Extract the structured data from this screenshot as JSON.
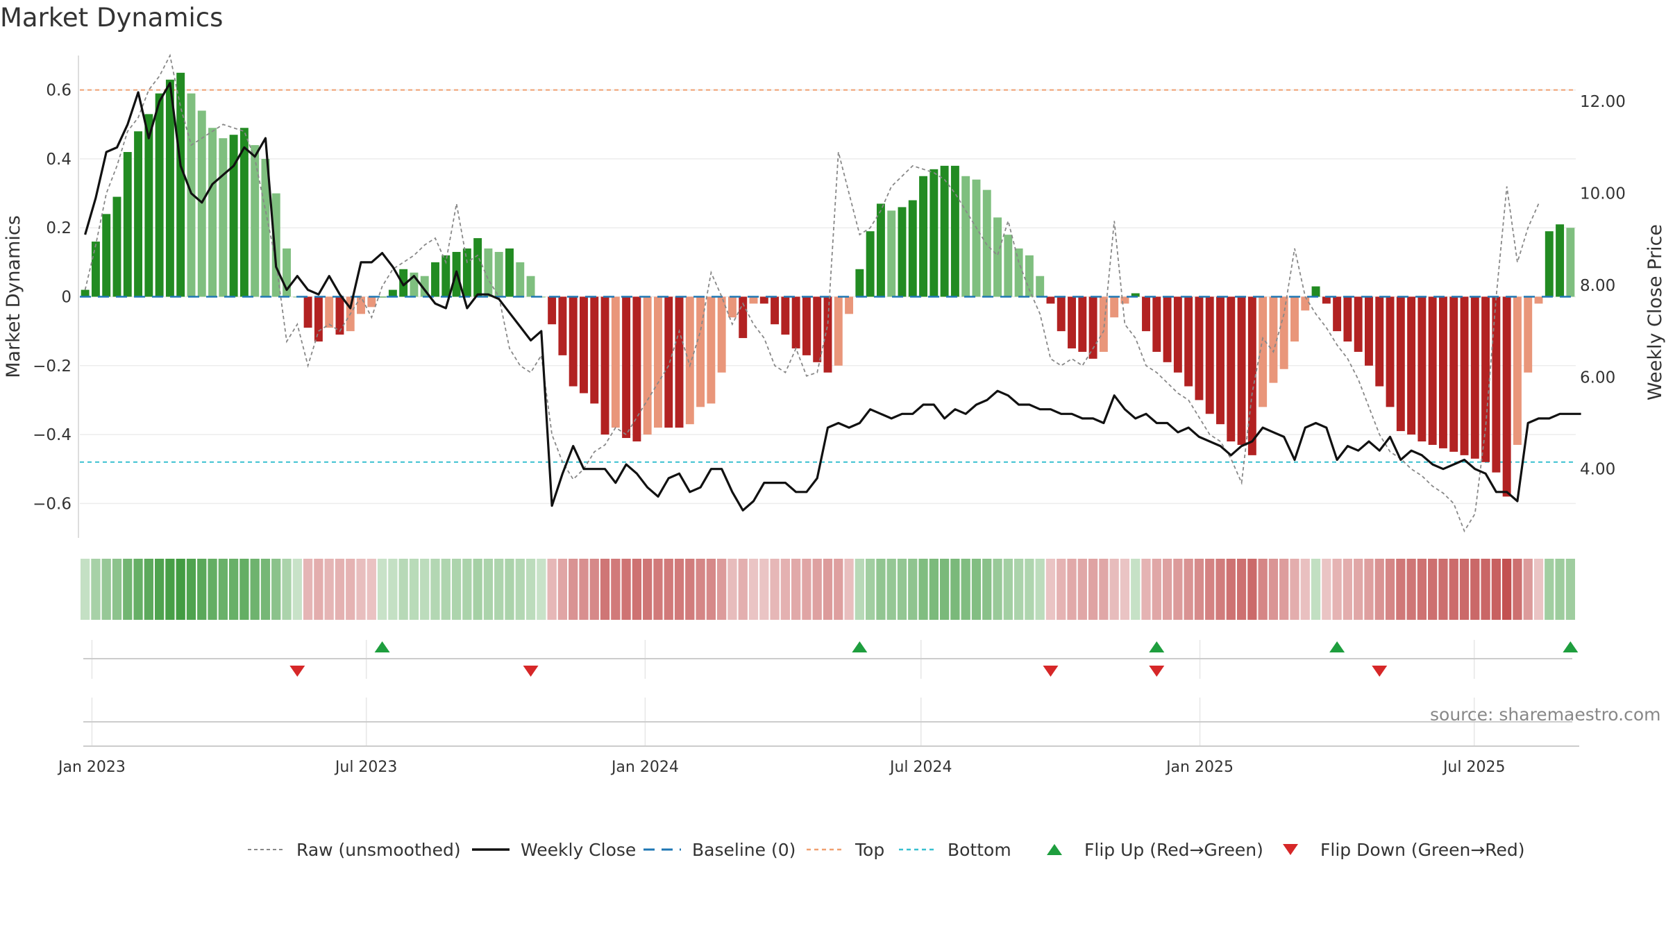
{
  "chart_data": {
    "type": "bar",
    "title": "Market Dynamics",
    "source": "source: sharemaestro.com",
    "ylabel_left": "Market Dynamics",
    "ylabel_right": "Weekly Close Price",
    "ylim_left": [
      -0.7,
      0.7
    ],
    "ylim_right": [
      2.5,
      13.0
    ],
    "y_ticks_left": [
      {
        "value": 0.6,
        "label": "0.6"
      },
      {
        "value": 0.4,
        "label": "0.4"
      },
      {
        "value": 0.2,
        "label": "0.2"
      },
      {
        "value": 0.0,
        "label": "0"
      },
      {
        "value": -0.2,
        "label": "−0.2"
      },
      {
        "value": -0.4,
        "label": "−0.4"
      },
      {
        "value": -0.6,
        "label": "−0.6"
      }
    ],
    "y_ticks_right": [
      {
        "value": 12.0,
        "label": "12.00"
      },
      {
        "value": 10.0,
        "label": "10.00"
      },
      {
        "value": 8.0,
        "label": "8.00"
      },
      {
        "value": 6.0,
        "label": "6.00"
      },
      {
        "value": 4.0,
        "label": "4.00"
      }
    ],
    "x_ticks": [
      {
        "date": "2023-01-01",
        "label": "Jan 2023"
      },
      {
        "date": "2023-07-01",
        "label": "Jul 2023"
      },
      {
        "date": "2024-01-01",
        "label": "Jan 2024"
      },
      {
        "date": "2024-07-01",
        "label": "Jul 2024"
      },
      {
        "date": "2025-01-01",
        "label": "Jan 2025"
      },
      {
        "date": "2025-07-01",
        "label": "Jul 2025"
      }
    ],
    "start_date": "2022-12-24",
    "baseline": 0,
    "top_level": 0.6,
    "bottom_level": -0.48,
    "colors": {
      "strong_up": "#228b22",
      "weak_up": "#7fbf7f",
      "strong_down": "#b22222",
      "weak_down": "#e9967a",
      "close_line": "#111111",
      "raw_line": "#888888",
      "baseline": "#1f77b4",
      "top": "#f0a070",
      "bottom": "#39c0d0",
      "flip_up": "#1e9e3e",
      "flip_down": "#d62728"
    },
    "series": [
      {
        "name": "Market Dynamics",
        "values": [
          0.02,
          0.16,
          0.24,
          0.29,
          0.42,
          0.48,
          0.53,
          0.59,
          0.63,
          0.65,
          0.59,
          0.54,
          0.49,
          0.46,
          0.47,
          0.49,
          0.44,
          0.4,
          0.3,
          0.14,
          0.0,
          -0.09,
          -0.13,
          -0.09,
          -0.11,
          -0.1,
          -0.05,
          -0.03,
          0.0,
          0.02,
          0.08,
          0.07,
          0.06,
          0.1,
          0.12,
          0.13,
          0.14,
          0.17,
          0.14,
          0.13,
          0.14,
          0.1,
          0.06,
          0.0,
          -0.08,
          -0.17,
          -0.26,
          -0.28,
          -0.31,
          -0.4,
          -0.38,
          -0.41,
          -0.42,
          -0.4,
          -0.38,
          -0.38,
          -0.38,
          -0.37,
          -0.32,
          -0.31,
          -0.22,
          -0.06,
          -0.12,
          -0.02,
          -0.02,
          -0.08,
          -0.11,
          -0.15,
          -0.17,
          -0.19,
          -0.22,
          -0.2,
          -0.05,
          0.08,
          0.19,
          0.27,
          0.25,
          0.26,
          0.28,
          0.35,
          0.37,
          0.38,
          0.38,
          0.35,
          0.34,
          0.31,
          0.23,
          0.18,
          0.14,
          0.12,
          0.06,
          -0.02,
          -0.1,
          -0.15,
          -0.16,
          -0.18,
          -0.16,
          -0.06,
          -0.02,
          0.01,
          -0.1,
          -0.16,
          -0.19,
          -0.22,
          -0.26,
          -0.3,
          -0.34,
          -0.37,
          -0.42,
          -0.43,
          -0.46,
          -0.32,
          -0.25,
          -0.21,
          -0.13,
          -0.04,
          0.03,
          -0.02,
          -0.1,
          -0.13,
          -0.16,
          -0.2,
          -0.26,
          -0.32,
          -0.39,
          -0.4,
          -0.42,
          -0.43,
          -0.44,
          -0.45,
          -0.46,
          -0.47,
          -0.48,
          -0.51,
          -0.58,
          -0.43,
          -0.22,
          -0.02,
          0.19,
          0.21,
          0.2
        ]
      },
      {
        "name": "Raw (unsmoothed)",
        "values": [
          0.02,
          0.15,
          0.3,
          0.38,
          0.48,
          0.52,
          0.6,
          0.64,
          0.7,
          0.55,
          0.44,
          0.46,
          0.48,
          0.5,
          0.49,
          0.48,
          0.4,
          0.25,
          0.1,
          -0.13,
          -0.08,
          -0.2,
          -0.1,
          -0.08,
          -0.1,
          -0.05,
          0.0,
          -0.06,
          0.03,
          0.08,
          0.1,
          0.12,
          0.15,
          0.17,
          0.1,
          0.27,
          0.1,
          0.12,
          0.05,
          0.0,
          -0.15,
          -0.2,
          -0.22,
          -0.17,
          -0.4,
          -0.48,
          -0.53,
          -0.5,
          -0.45,
          -0.43,
          -0.38,
          -0.4,
          -0.35,
          -0.3,
          -0.25,
          -0.2,
          -0.1,
          -0.2,
          -0.1,
          0.07,
          0.0,
          -0.08,
          -0.02,
          -0.08,
          -0.12,
          -0.2,
          -0.22,
          -0.15,
          -0.23,
          -0.22,
          -0.08,
          0.42,
          0.3,
          0.18,
          0.2,
          0.25,
          0.32,
          0.35,
          0.38,
          0.37,
          0.36,
          0.34,
          0.3,
          0.25,
          0.2,
          0.15,
          0.12,
          0.22,
          0.1,
          0.02,
          -0.05,
          -0.18,
          -0.2,
          -0.18,
          -0.2,
          -0.15,
          -0.1,
          0.22,
          -0.08,
          -0.12,
          -0.2,
          -0.22,
          -0.25,
          -0.28,
          -0.3,
          -0.35,
          -0.4,
          -0.42,
          -0.47,
          -0.54,
          -0.28,
          -0.12,
          -0.16,
          -0.05,
          0.14,
          0.0,
          -0.05,
          -0.09,
          -0.14,
          -0.18,
          -0.24,
          -0.32,
          -0.4,
          -0.45,
          -0.47,
          -0.5,
          -0.52,
          -0.55,
          -0.57,
          -0.6,
          -0.68,
          -0.63,
          -0.38,
          0.0,
          0.32,
          0.1,
          0.2,
          0.27
        ]
      },
      {
        "name": "Weekly Close",
        "values": [
          9.1,
          9.9,
          10.9,
          11.0,
          11.5,
          12.2,
          11.2,
          12.0,
          12.4,
          10.6,
          10.0,
          9.8,
          10.2,
          10.4,
          10.6,
          11.0,
          10.8,
          11.2,
          8.4,
          7.9,
          8.2,
          7.9,
          7.8,
          8.2,
          7.8,
          7.5,
          8.5,
          8.5,
          8.7,
          8.4,
          8.0,
          8.2,
          7.9,
          7.6,
          7.5,
          8.3,
          7.5,
          7.8,
          7.8,
          7.7,
          7.4,
          7.1,
          6.8,
          7.0,
          3.2,
          3.9,
          4.5,
          4.0,
          4.0,
          4.0,
          3.7,
          4.1,
          3.9,
          3.6,
          3.4,
          3.8,
          3.9,
          3.5,
          3.6,
          4.0,
          4.0,
          3.5,
          3.1,
          3.3,
          3.7,
          3.7,
          3.7,
          3.5,
          3.5,
          3.8,
          4.9,
          5.0,
          4.9,
          5.0,
          5.3,
          5.2,
          5.1,
          5.2,
          5.2,
          5.4,
          5.4,
          5.1,
          5.3,
          5.2,
          5.4,
          5.5,
          5.7,
          5.6,
          5.4,
          5.4,
          5.3,
          5.3,
          5.2,
          5.2,
          5.1,
          5.1,
          5.0,
          5.6,
          5.3,
          5.1,
          5.2,
          5.0,
          5.0,
          4.8,
          4.9,
          4.7,
          4.6,
          4.5,
          4.3,
          4.5,
          4.6,
          4.9,
          4.8,
          4.7,
          4.2,
          4.9,
          5.0,
          4.9,
          4.2,
          4.5,
          4.4,
          4.6,
          4.4,
          4.7,
          4.2,
          4.4,
          4.3,
          4.1,
          4.0,
          4.1,
          4.2,
          4.0,
          3.9,
          3.5,
          3.5,
          3.3,
          5.0,
          5.1,
          5.1,
          5.2,
          5.2,
          5.2
        ]
      }
    ],
    "flip_up_weeks": [
      28,
      73,
      101,
      118,
      140
    ],
    "flip_down_weeks": [
      20,
      42,
      91,
      101,
      122
    ],
    "legend": [
      {
        "key": "raw",
        "label": "Raw (unsmoothed)"
      },
      {
        "key": "close",
        "label": "Weekly Close"
      },
      {
        "key": "baseline",
        "label": "Baseline (0)"
      },
      {
        "key": "top",
        "label": "Top"
      },
      {
        "key": "bottom",
        "label": "Bottom"
      },
      {
        "key": "flip_up",
        "label": "Flip Up (Red→Green)"
      },
      {
        "key": "flip_down",
        "label": "Flip Down (Green→Red)"
      }
    ]
  }
}
